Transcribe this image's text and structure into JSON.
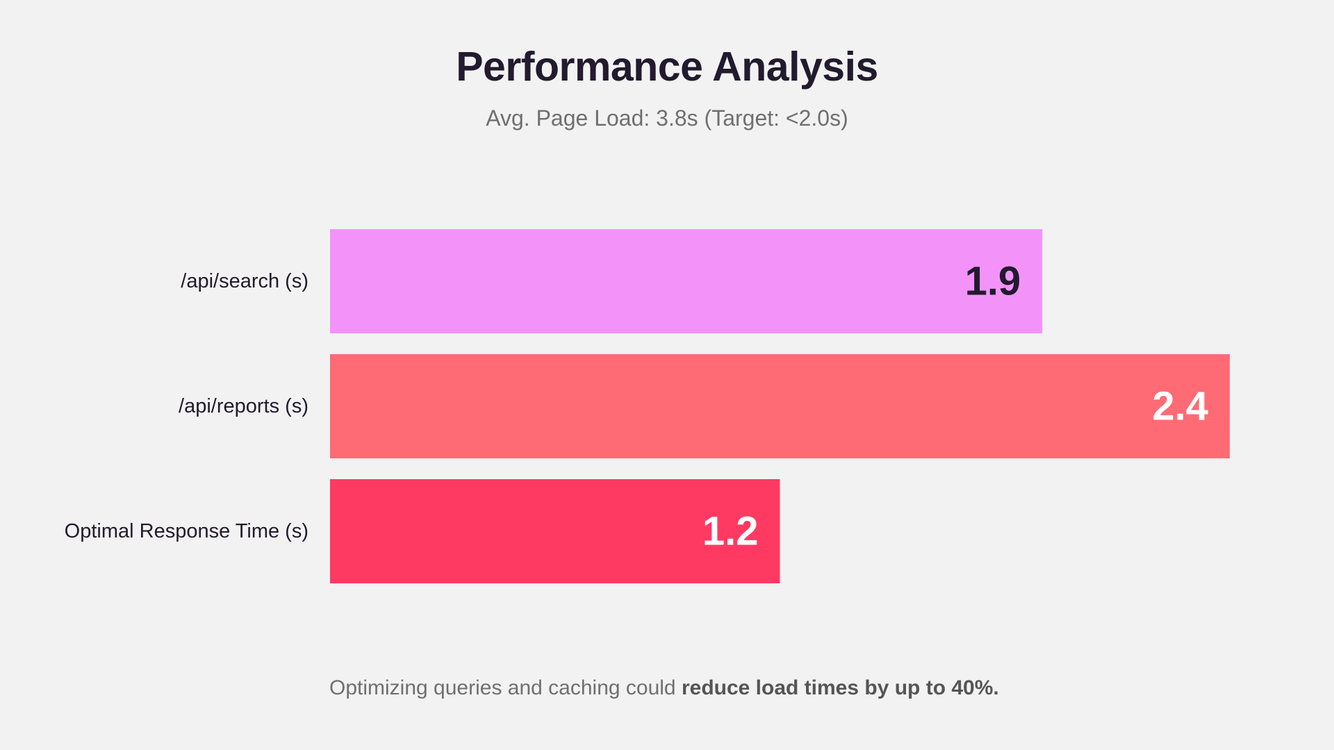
{
  "colors": {
    "background": "#f2f2f2",
    "title": "#221a2e",
    "muted": "#6f6f6f"
  },
  "footnote": {
    "text": "Optimizing queries and caching could ",
    "emphasis": "reduce load times by up to 40%."
  },
  "chart_data": {
    "type": "bar",
    "orientation": "horizontal",
    "title": "Performance Analysis",
    "subtitle": "Avg. Page Load: 3.8s (Target: <2.0s)",
    "xlabel": "",
    "ylabel": "",
    "xlim": [
      0,
      2.4
    ],
    "grid": false,
    "legend": "none",
    "categories": [
      "/api/search (s)",
      "/api/reports (s)",
      "Optimal Response Time (s)"
    ],
    "values": [
      1.9,
      2.4,
      1.2
    ],
    "value_labels": [
      "1.9",
      "2.4",
      "1.2"
    ],
    "bar_colors": [
      "#f393fa",
      "#ff6b74",
      "#ff3a62"
    ],
    "value_label_colors": [
      "#221a2e",
      "#ffffff",
      "#ffffff"
    ]
  }
}
